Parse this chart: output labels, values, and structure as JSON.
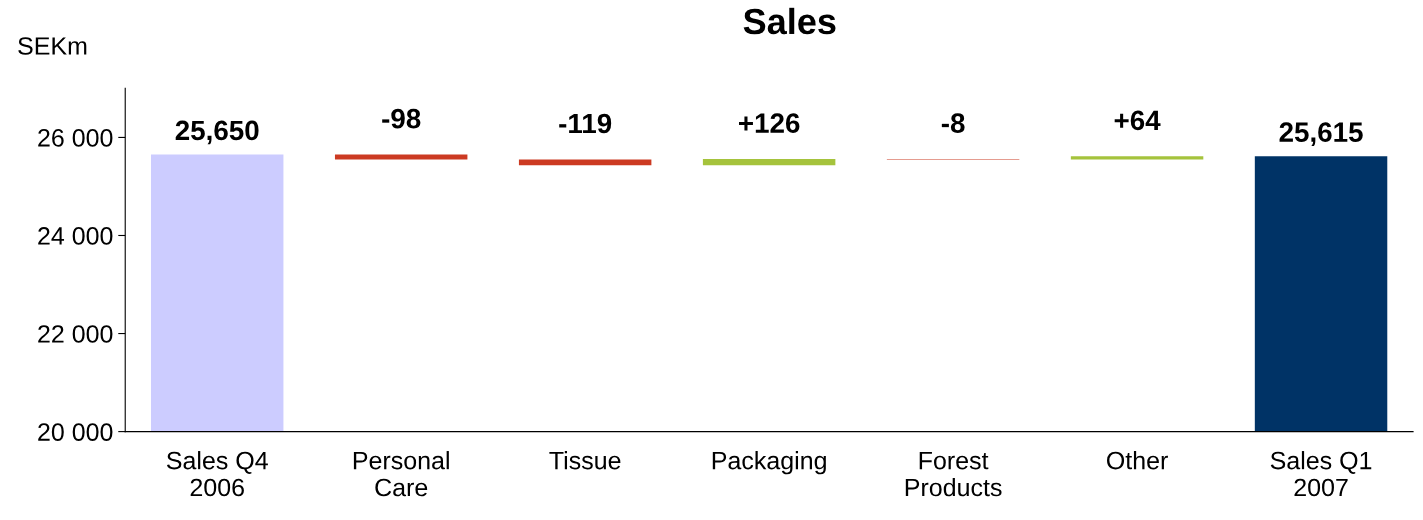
{
  "chart_data": {
    "type": "bar",
    "title": "Sales",
    "ylabel": "SEKm",
    "categories": [
      "Sales Q4\n2006",
      "Personal\nCare",
      "Tissue",
      "Packaging",
      "Forest\nProducts",
      "Other",
      "Sales Q1\n2007"
    ],
    "values": [
      25650,
      -98,
      -119,
      126,
      -8,
      64,
      25615
    ],
    "base": [
      null,
      25650,
      25552,
      25433,
      25559,
      25551,
      null
    ],
    "colors": [
      "#ccccff",
      "#cc3a22",
      "#cc3a22",
      "#a5c33c",
      "#cc3a22",
      "#a5c33c",
      "#003366"
    ],
    "value_labels": [
      "25,650",
      "-98",
      "-119",
      "+126",
      "-8",
      "+64",
      "25,615"
    ],
    "ylim": [
      20000,
      27000
    ],
    "yticks": [
      {
        "value": 20000,
        "label": "20 000"
      },
      {
        "value": 22000,
        "label": "22 000"
      },
      {
        "value": 24000,
        "label": "24 000"
      },
      {
        "value": 26000,
        "label": "26 000"
      }
    ],
    "grid": false,
    "legend": false
  }
}
